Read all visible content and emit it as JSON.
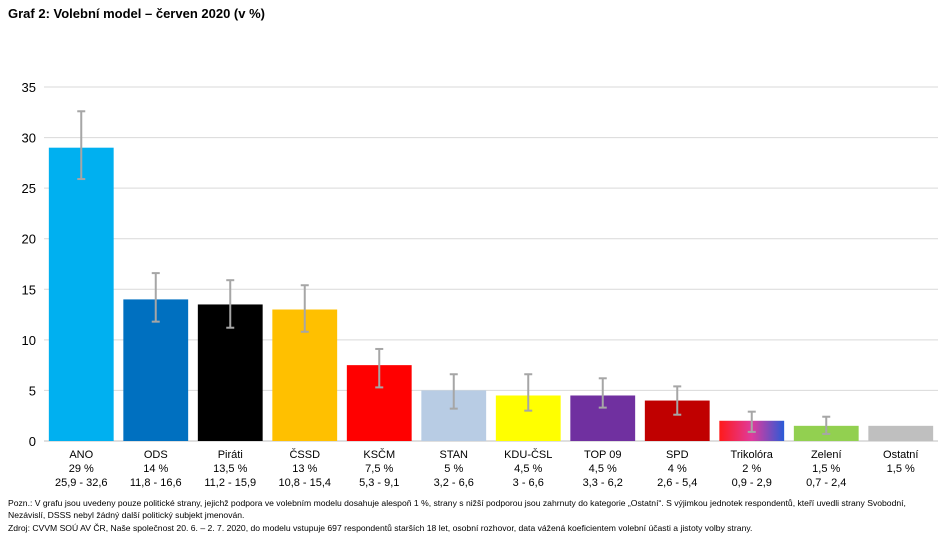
{
  "title": "Graf 2: Volební model – červen 2020 (v %)",
  "note": "Pozn.: V grafu jsou uvedeny pouze politické strany, jejichž podpora ve volebním modelu dosahuje alespoň 1 %, strany s nižší podporou jsou zahrnuty do kategorie „Ostatní“. S výjimkou jednotek respondentů, kteří uvedli strany Svobodní,\nNezávislí, DSSS nebyl žádný další politický subjekt jmenován.",
  "source": "Zdroj: CVVM SOÚ AV ČR, Naše společnost 20. 6. – 2. 7. 2020, do modelu vstupuje 697 respondentů starších 18 let, osobní rozhovor, data vážená koeficientem volební účasti a jistoty volby strany.",
  "chart_data": {
    "type": "bar",
    "title": "Graf 2: Volební model – červen 2020 (v %)",
    "xlabel": "",
    "ylabel": "",
    "ylim": [
      0,
      35
    ],
    "yticks": [
      0,
      5,
      10,
      15,
      20,
      25,
      30,
      35
    ],
    "grid": true,
    "legend": "none",
    "categories": [
      "ANO",
      "ODS",
      "Piráti",
      "ČSSD",
      "KSČM",
      "STAN",
      "KDU-ČSL",
      "TOP 09",
      "SPD",
      "Trikolóra",
      "Zelení",
      "Ostatní"
    ],
    "values": [
      29,
      14,
      13.5,
      13,
      7.5,
      5,
      4.5,
      4.5,
      4,
      2,
      1.5,
      1.5
    ],
    "value_labels": [
      "29 %",
      "14 %",
      "13,5 %",
      "13 %",
      "7,5 %",
      "5 %",
      "4,5 %",
      "4,5 %",
      "4 %",
      "2 %",
      "1,5 %",
      "1,5 %"
    ],
    "intervals": [
      [
        25.9,
        32.6
      ],
      [
        11.8,
        16.6
      ],
      [
        11.2,
        15.9
      ],
      [
        10.8,
        15.4
      ],
      [
        5.3,
        9.1
      ],
      [
        3.2,
        6.6
      ],
      [
        3,
        6.6
      ],
      [
        3.3,
        6.2
      ],
      [
        2.6,
        5.4
      ],
      [
        0.9,
        2.9
      ],
      [
        0.7,
        2.4
      ],
      null
    ],
    "interval_labels": [
      "25,9 - 32,6",
      "11,8 - 16,6",
      "11,2 - 15,9",
      "10,8 - 15,4",
      "5,3 - 9,1",
      "3,2 - 6,6",
      "3 - 6,6",
      "3,3 - 6,2",
      "2,6 - 5,4",
      "0,9 - 2,9",
      "0,7 - 2,4",
      ""
    ],
    "colors": [
      "#00b0f0",
      "#0070c0",
      "#000000",
      "#ffc000",
      "#ff0000",
      "#b8cce4",
      "#ffff00",
      "#7030a0",
      "#c00000",
      "gradient-red-blue",
      "#92d050",
      "#bfbfbf"
    ]
  }
}
